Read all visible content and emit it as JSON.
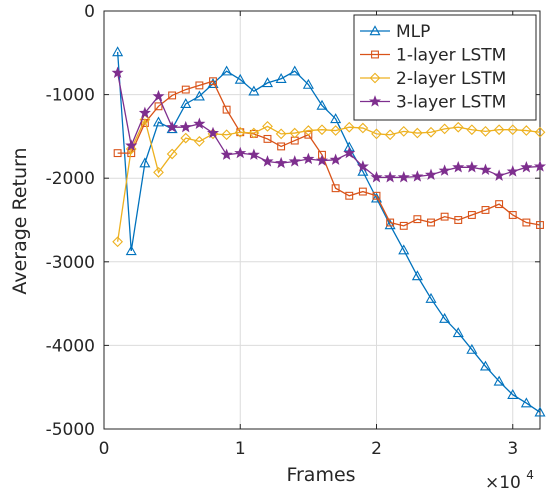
{
  "chart_data": {
    "type": "line",
    "xlabel": "Frames",
    "ylabel": "Average Return",
    "x_multiplier_label": {
      "base": "×10",
      "exp": "4"
    },
    "xlim": [
      0,
      3.2
    ],
    "ylim": [
      -5000,
      0
    ],
    "xticks": [
      0,
      1,
      2,
      3
    ],
    "yticks": [
      0,
      -1000,
      -2000,
      -3000,
      -4000,
      -5000
    ],
    "grid": true,
    "legend_position": "top-right",
    "series": [
      {
        "name": "MLP",
        "color": "#0072BD",
        "marker": "triangle",
        "x": [
          0.1,
          0.2,
          0.3,
          0.4,
          0.5,
          0.6,
          0.7,
          0.8,
          0.9,
          1.0,
          1.1,
          1.2,
          1.3,
          1.4,
          1.5,
          1.6,
          1.7,
          1.8,
          1.9,
          2.0,
          2.1,
          2.2,
          2.3,
          2.4,
          2.5,
          2.6,
          2.7,
          2.8,
          2.9,
          3.0,
          3.1,
          3.2
        ],
        "y": [
          -490,
          -2870,
          -1820,
          -1330,
          -1410,
          -1110,
          -1020,
          -870,
          -720,
          -820,
          -960,
          -860,
          -810,
          -720,
          -880,
          -1130,
          -1290,
          -1630,
          -1920,
          -2240,
          -2560,
          -2860,
          -3170,
          -3440,
          -3680,
          -3850,
          -4050,
          -4250,
          -4430,
          -4590,
          -4690,
          -4800
        ]
      },
      {
        "name": "1-layer LSTM",
        "color": "#D95319",
        "marker": "square",
        "x": [
          0.1,
          0.2,
          0.3,
          0.4,
          0.5,
          0.6,
          0.7,
          0.8,
          0.9,
          1.0,
          1.1,
          1.2,
          1.3,
          1.4,
          1.5,
          1.6,
          1.7,
          1.8,
          1.9,
          2.0,
          2.1,
          2.2,
          2.3,
          2.4,
          2.5,
          2.6,
          2.7,
          2.8,
          2.9,
          3.0,
          3.1,
          3.2
        ],
        "y": [
          -1700,
          -1700,
          -1340,
          -1140,
          -1010,
          -940,
          -890,
          -840,
          -1180,
          -1450,
          -1470,
          -1530,
          -1620,
          -1550,
          -1480,
          -1720,
          -2120,
          -2210,
          -2160,
          -2210,
          -2530,
          -2570,
          -2490,
          -2530,
          -2460,
          -2500,
          -2440,
          -2380,
          -2310,
          -2440,
          -2530,
          -2560
        ]
      },
      {
        "name": "2-layer LSTM",
        "color": "#EDB120",
        "marker": "diamond",
        "x": [
          0.1,
          0.2,
          0.3,
          0.4,
          0.5,
          0.6,
          0.7,
          0.8,
          0.9,
          1.0,
          1.1,
          1.2,
          1.3,
          1.4,
          1.5,
          1.6,
          1.7,
          1.8,
          1.9,
          2.0,
          2.1,
          2.2,
          2.3,
          2.4,
          2.5,
          2.6,
          2.7,
          2.8,
          2.9,
          3.0,
          3.1,
          3.2
        ],
        "y": [
          -2760,
          -1650,
          -1300,
          -1930,
          -1710,
          -1520,
          -1560,
          -1470,
          -1480,
          -1450,
          -1460,
          -1380,
          -1470,
          -1460,
          -1430,
          -1420,
          -1430,
          -1390,
          -1400,
          -1470,
          -1480,
          -1440,
          -1460,
          -1450,
          -1410,
          -1390,
          -1420,
          -1440,
          -1420,
          -1420,
          -1430,
          -1450
        ]
      },
      {
        "name": "3-layer LSTM",
        "color": "#7E2F8E",
        "marker": "star",
        "x": [
          0.1,
          0.2,
          0.3,
          0.4,
          0.5,
          0.6,
          0.7,
          0.8,
          0.9,
          1.0,
          1.1,
          1.2,
          1.3,
          1.4,
          1.5,
          1.6,
          1.7,
          1.8,
          1.9,
          2.0,
          2.1,
          2.2,
          2.3,
          2.4,
          2.5,
          2.6,
          2.7,
          2.8,
          2.9,
          3.0,
          3.1,
          3.2
        ],
        "y": [
          -740,
          -1610,
          -1220,
          -1020,
          -1390,
          -1390,
          -1350,
          -1460,
          -1720,
          -1700,
          -1720,
          -1800,
          -1820,
          -1800,
          -1770,
          -1790,
          -1780,
          -1700,
          -1860,
          -1990,
          -1990,
          -1990,
          -1980,
          -1960,
          -1910,
          -1870,
          -1870,
          -1900,
          -1970,
          -1920,
          -1870,
          -1860
        ]
      }
    ]
  }
}
